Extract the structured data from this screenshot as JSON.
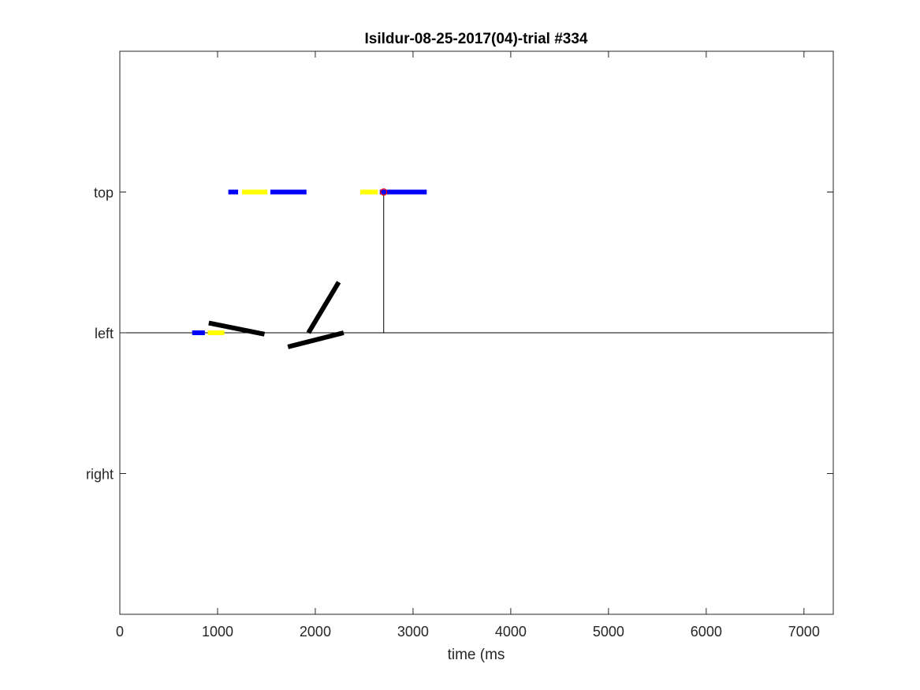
{
  "chart_data": {
    "type": "line",
    "title": "Isildur-08-25-2017(04)-trial #334",
    "xlabel": "time (ms",
    "ylabel": "",
    "xlim": [
      0,
      7300
    ],
    "ylim": [
      0,
      4
    ],
    "x_ticks": [
      0,
      1000,
      2000,
      3000,
      4000,
      5000,
      6000,
      7000
    ],
    "y_ticks": [
      {
        "value": 1,
        "label": "right"
      },
      {
        "value": 2,
        "label": "left"
      },
      {
        "value": 3,
        "label": "top"
      }
    ],
    "grid": false,
    "colors": {
      "blue": "#0000ff",
      "yellow": "#ffff00",
      "black": "#000000",
      "marker": "#ff0000",
      "axis": "#262626"
    },
    "segments": [
      {
        "color": "blue",
        "x": [
          740,
          870
        ],
        "y": [
          2,
          2
        ]
      },
      {
        "color": "yellow",
        "x": [
          900,
          1070
        ],
        "y": [
          2,
          2
        ]
      },
      {
        "color": "blue",
        "x": [
          1110,
          1210
        ],
        "y": [
          3,
          3
        ]
      },
      {
        "color": "yellow",
        "x": [
          1250,
          1510
        ],
        "y": [
          3,
          3
        ]
      },
      {
        "color": "blue",
        "x": [
          1540,
          1910
        ],
        "y": [
          3,
          3
        ]
      },
      {
        "color": "yellow",
        "x": [
          2460,
          2640
        ],
        "y": [
          3,
          3
        ]
      },
      {
        "color": "blue",
        "x": [
          2660,
          3140
        ],
        "y": [
          3,
          3
        ]
      }
    ],
    "strokes": [
      {
        "x": [
          910,
          1480
        ],
        "y": [
          2.07,
          1.99
        ]
      },
      {
        "x": [
          1930,
          2240
        ],
        "y": [
          2.0,
          2.36
        ]
      },
      {
        "x": [
          1720,
          2290
        ],
        "y": [
          1.9,
          2.0
        ]
      }
    ],
    "reference_lines": [
      {
        "x": [
          0,
          7300
        ],
        "y": [
          2,
          2
        ]
      },
      {
        "x": [
          2700,
          2700
        ],
        "y": [
          2,
          3
        ]
      }
    ],
    "markers": [
      {
        "x": 2700,
        "y": 3,
        "shape": "circle"
      }
    ]
  }
}
